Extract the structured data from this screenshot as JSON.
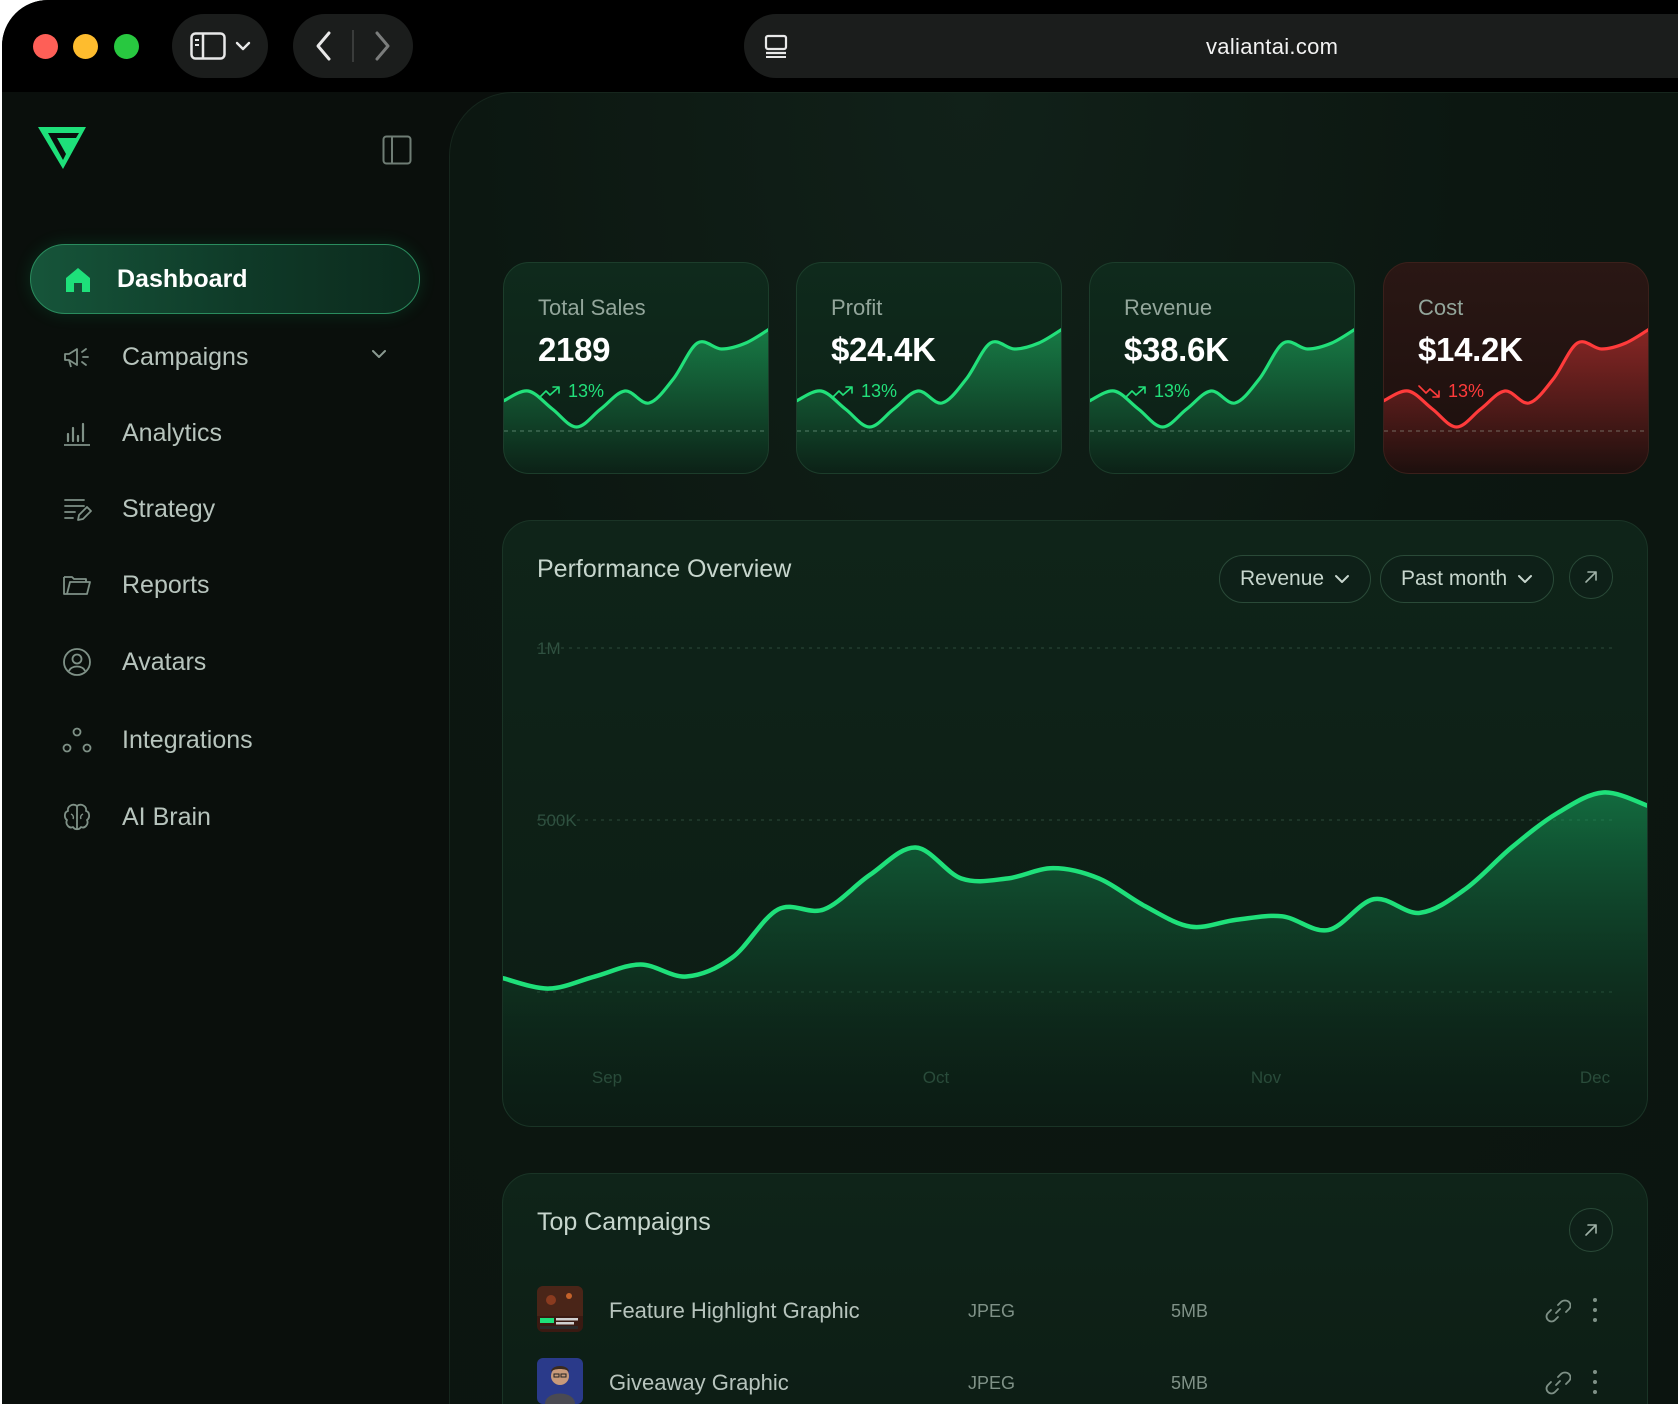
{
  "browser": {
    "url": "valiantai.com",
    "icons": [
      "sidebar-icon",
      "chevron-down-icon",
      "back-arrow-icon",
      "forward-arrow-icon",
      "tab-overview-icon"
    ]
  },
  "sidebar": {
    "items": [
      {
        "id": "dashboard",
        "label": "Dashboard",
        "icon": "home-icon",
        "active": true
      },
      {
        "id": "campaigns",
        "label": "Campaigns",
        "icon": "megaphone-icon",
        "has_submenu": true
      },
      {
        "id": "analytics",
        "label": "Analytics",
        "icon": "bar-chart-icon"
      },
      {
        "id": "strategy",
        "label": "Strategy",
        "icon": "list-pen-icon"
      },
      {
        "id": "reports",
        "label": "Reports",
        "icon": "folder-icon"
      },
      {
        "id": "avatars",
        "label": "Avatars",
        "icon": "user-circle-icon"
      },
      {
        "id": "integrations",
        "label": "Integrations",
        "icon": "nodes-icon"
      },
      {
        "id": "ai_brain",
        "label": "AI Brain",
        "icon": "brain-icon"
      }
    ]
  },
  "stats": [
    {
      "title": "Total Sales",
      "value": "2189",
      "delta": "13%",
      "trend": "up",
      "color": "#22e07a"
    },
    {
      "title": "Profit",
      "value": "$24.4K",
      "delta": "13%",
      "trend": "up",
      "color": "#22e07a"
    },
    {
      "title": "Revenue",
      "value": "$38.6K",
      "delta": "13%",
      "trend": "up",
      "color": "#22e07a"
    },
    {
      "title": "Cost",
      "value": "$14.2K",
      "delta": "13%",
      "trend": "down",
      "color": "#ff3b3b"
    }
  ],
  "performance": {
    "title": "Performance Overview",
    "metric_select": "Revenue",
    "period_select": "Past month",
    "line_color": "#1fe07a"
  },
  "chart_data": {
    "type": "area",
    "title": "Performance Overview",
    "yticks": [
      "1M",
      "500K"
    ],
    "ylim": [
      0,
      1000000
    ],
    "xticks": [
      "Sep",
      "Oct",
      "Nov",
      "Dec"
    ],
    "series": [
      {
        "values": [
          40000,
          10000,
          45000,
          80000,
          45000,
          100000,
          240000,
          240000,
          340000,
          420000,
          330000,
          330000,
          360000,
          330000,
          250000,
          190000,
          210000,
          220000,
          180000,
          270000,
          230000,
          300000,
          420000,
          520000,
          580000,
          540000
        ]
      }
    ]
  },
  "top_campaigns": {
    "title": "Top Campaigns",
    "rows": [
      {
        "name": "Feature Highlight Graphic",
        "type": "JPEG",
        "size": "5MB"
      },
      {
        "name": "Giveaway Graphic",
        "type": "JPEG",
        "size": "5MB"
      }
    ]
  }
}
